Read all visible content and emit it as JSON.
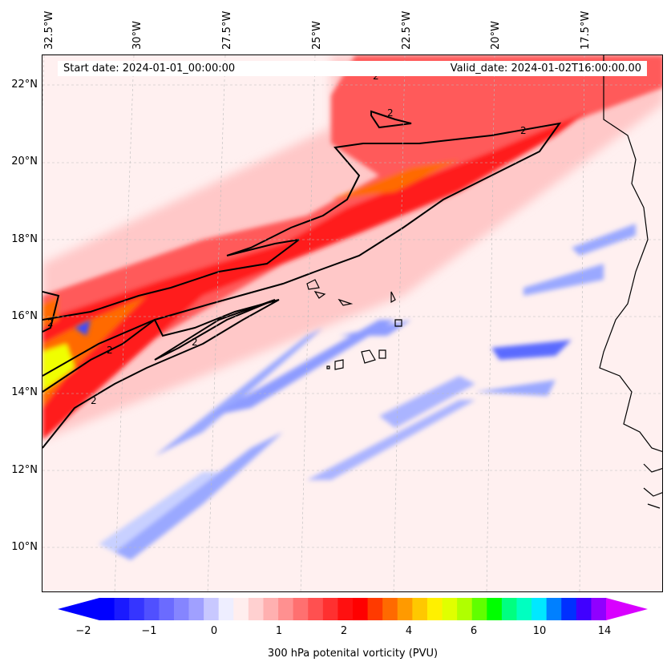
{
  "map": {
    "lon_labels": [
      "32.5°W",
      "30°W",
      "27.5°W",
      "25°W",
      "22.5°W",
      "20°W",
      "17.5°W"
    ],
    "lat_labels": [
      "22°N",
      "20°N",
      "18°N",
      "16°N",
      "14°N",
      "12°N",
      "10°N"
    ],
    "start_date": "Start date: 2024-01-01_00:00:00",
    "valid_date": "Valid_date: 2024-01-02T16:00:00.00",
    "contour_label": "2",
    "colors": {
      "neg_strong": "#0000ff",
      "neg_weak": "#c8d0ff",
      "near_zero": "#fff0f0",
      "pos_weak": "#ffb0b0",
      "pos_mid": "#ff5050",
      "pos_strong": "#ff0000",
      "orange": "#ff6a00",
      "yellow": "#f0ff00",
      "coast": "#000000"
    }
  },
  "colorbar": {
    "title": "300 hPa potenital vorticity (PVU)",
    "ticks": [
      "−2",
      "−1",
      "0",
      "1",
      "2",
      "4",
      "6",
      "10",
      "14"
    ],
    "colors": [
      "#0000ff",
      "#1a1aff",
      "#3535ff",
      "#5050ff",
      "#6b6bff",
      "#8585ff",
      "#a0a0ff",
      "#c8c8ff",
      "#eeeeff",
      "#ffeeee",
      "#ffd0d0",
      "#ffb0b0",
      "#ff9090",
      "#ff7070",
      "#ff5050",
      "#ff3030",
      "#ff1010",
      "#ff0000",
      "#ff3a00",
      "#ff6a00",
      "#ff9a00",
      "#ffc800",
      "#fff000",
      "#e0ff00",
      "#b0ff00",
      "#60ff00",
      "#00ff00",
      "#00ff80",
      "#00ffc0",
      "#00e8ff",
      "#0080ff",
      "#0030ff",
      "#4000ff",
      "#9000ff"
    ],
    "min_color": "#0000ff",
    "max_color": "#d800ff"
  }
}
